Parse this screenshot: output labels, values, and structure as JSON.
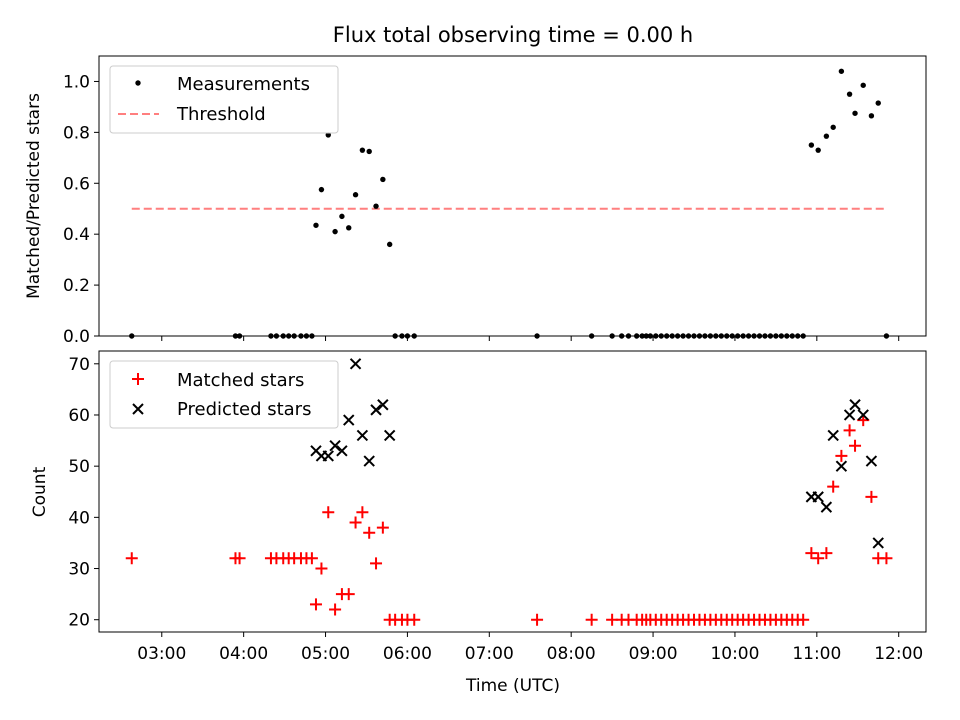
{
  "colors": {
    "measurement": "#000000",
    "threshold": "#ff7f7f",
    "matched": "#ff0000",
    "predicted": "#000000"
  },
  "chart_data": [
    {
      "type": "scatter",
      "title": "Flux total observing time = 0.00 h",
      "xlabel": "",
      "ylabel": "Matched/Predicted stars",
      "ylim": [
        0,
        1.1
      ],
      "yticks": [
        0.0,
        0.2,
        0.4,
        0.6,
        0.8,
        1.0
      ],
      "ytick_labels": [
        "0.0",
        "0.2",
        "0.4",
        "0.6",
        "0.8",
        "1.0"
      ],
      "xlim": [
        "02:14",
        "12:20"
      ],
      "x_unit": "time of day (UTC)",
      "legend": {
        "position": "top-left",
        "entries": [
          {
            "key": "measurement",
            "label": "Measurements"
          },
          {
            "key": "threshold",
            "label": "Threshold"
          }
        ]
      },
      "threshold": {
        "value": 0.5,
        "from": "02:38",
        "to": "11:51"
      },
      "series": [
        {
          "name": "Measurements",
          "x": [
            "02:38",
            "03:54",
            "03:57",
            "04:20",
            "04:24",
            "04:29",
            "04:33",
            "04:37",
            "04:42",
            "04:46",
            "04:50",
            "04:53",
            "04:57",
            "05:02",
            "05:07",
            "05:12",
            "05:17",
            "05:22",
            "05:27",
            "05:32",
            "05:37",
            "05:42",
            "05:47",
            "05:51",
            "05:56",
            "06:00",
            "06:05",
            "07:35",
            "08:15",
            "08:30",
            "08:37",
            "08:42",
            "08:48",
            "08:52",
            "08:55",
            "08:58",
            "09:02",
            "09:06",
            "09:10",
            "09:14",
            "09:18",
            "09:22",
            "09:26",
            "09:30",
            "09:34",
            "09:38",
            "09:42",
            "09:46",
            "09:50",
            "09:54",
            "09:58",
            "10:02",
            "10:06",
            "10:10",
            "10:14",
            "10:18",
            "10:22",
            "10:26",
            "10:30",
            "10:34",
            "10:38",
            "10:42",
            "10:46",
            "10:50",
            "10:56",
            "11:01",
            "11:07",
            "11:12",
            "11:18",
            "11:24",
            "11:28",
            "11:34",
            "11:40",
            "11:45",
            "11:51"
          ],
          "y": [
            0.0,
            0.0,
            0.0,
            0.0,
            0.0,
            0.0,
            0.0,
            0.0,
            0.0,
            0.0,
            0.0,
            0.435,
            0.575,
            0.79,
            0.41,
            0.47,
            0.425,
            0.555,
            0.73,
            0.725,
            0.51,
            0.615,
            0.36,
            0.0,
            0.0,
            0.0,
            0.0,
            0.0,
            0.0,
            0.0,
            0.0,
            0.0,
            0.0,
            0.0,
            0.0,
            0.0,
            0.0,
            0.0,
            0.0,
            0.0,
            0.0,
            0.0,
            0.0,
            0.0,
            0.0,
            0.0,
            0.0,
            0.0,
            0.0,
            0.0,
            0.0,
            0.0,
            0.0,
            0.0,
            0.0,
            0.0,
            0.0,
            0.0,
            0.0,
            0.0,
            0.0,
            0.0,
            0.0,
            0.0,
            0.75,
            0.73,
            0.785,
            0.82,
            1.04,
            0.95,
            0.875,
            0.985,
            0.865,
            0.915,
            0.0
          ]
        }
      ]
    },
    {
      "type": "scatter",
      "title": "",
      "xlabel": "Time (UTC)",
      "ylabel": "Count",
      "ylim": [
        17.6,
        72.5
      ],
      "yticks": [
        20,
        30,
        40,
        50,
        60,
        70
      ],
      "ytick_labels": [
        "20",
        "30",
        "40",
        "50",
        "60",
        "70"
      ],
      "xlim": [
        "02:14",
        "12:20"
      ],
      "xticks": [
        "03:00",
        "04:00",
        "05:00",
        "06:00",
        "07:00",
        "08:00",
        "09:00",
        "10:00",
        "11:00",
        "12:00"
      ],
      "xtick_labels": [
        "03:00",
        "04:00",
        "05:00",
        "06:00",
        "07:00",
        "08:00",
        "09:00",
        "10:00",
        "11:00",
        "12:00"
      ],
      "legend": {
        "position": "top-left",
        "entries": [
          {
            "key": "matched",
            "label": "Matched stars"
          },
          {
            "key": "predicted",
            "label": "Predicted stars"
          }
        ]
      },
      "series": [
        {
          "name": "Matched stars",
          "x": [
            "02:38",
            "03:54",
            "03:57",
            "04:20",
            "04:24",
            "04:29",
            "04:33",
            "04:37",
            "04:42",
            "04:46",
            "04:50",
            "04:53",
            "04:57",
            "05:02",
            "05:07",
            "05:12",
            "05:17",
            "05:22",
            "05:27",
            "05:32",
            "05:37",
            "05:42",
            "05:47",
            "05:51",
            "05:56",
            "06:00",
            "06:05",
            "07:35",
            "08:15",
            "08:30",
            "08:37",
            "08:42",
            "08:48",
            "08:52",
            "08:55",
            "08:58",
            "09:02",
            "09:06",
            "09:10",
            "09:14",
            "09:18",
            "09:22",
            "09:26",
            "09:30",
            "09:34",
            "09:38",
            "09:42",
            "09:46",
            "09:50",
            "09:54",
            "09:58",
            "10:02",
            "10:06",
            "10:10",
            "10:14",
            "10:18",
            "10:22",
            "10:26",
            "10:30",
            "10:34",
            "10:38",
            "10:42",
            "10:46",
            "10:50",
            "10:56",
            "11:01",
            "11:07",
            "11:12",
            "11:18",
            "11:24",
            "11:28",
            "11:34",
            "11:40",
            "11:45",
            "11:51"
          ],
          "y": [
            32,
            32,
            32,
            32,
            32,
            32,
            32,
            32,
            32,
            32,
            32,
            23,
            30,
            41,
            22,
            25,
            25,
            39,
            41,
            37,
            31,
            38,
            20,
            20,
            20,
            20,
            20,
            20,
            20,
            20,
            20,
            20,
            20,
            20,
            20,
            20,
            20,
            20,
            20,
            20,
            20,
            20,
            20,
            20,
            20,
            20,
            20,
            20,
            20,
            20,
            20,
            20,
            20,
            20,
            20,
            20,
            20,
            20,
            20,
            20,
            20,
            20,
            20,
            20,
            33,
            32,
            33,
            46,
            52,
            57,
            54,
            59,
            44,
            32,
            32
          ]
        },
        {
          "name": "Predicted stars",
          "x": [
            "04:53",
            "04:57",
            "05:02",
            "05:07",
            "05:12",
            "05:17",
            "05:22",
            "05:27",
            "05:32",
            "05:37",
            "05:42",
            "05:47",
            "10:56",
            "11:01",
            "11:07",
            "11:12",
            "11:18",
            "11:24",
            "11:28",
            "11:34",
            "11:40",
            "11:45"
          ],
          "y": [
            53,
            52,
            52,
            54,
            53,
            59,
            70,
            56,
            51,
            61,
            62,
            56,
            44,
            44,
            42,
            56,
            50,
            60,
            62,
            60,
            51,
            35
          ]
        }
      ]
    }
  ]
}
